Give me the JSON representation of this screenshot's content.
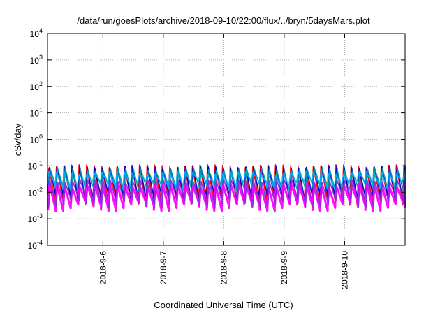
{
  "chart_data": {
    "type": "line",
    "title": "/data/run/goesPlots/archive/2018-09-10/22:00/flux/../bryn/5daysMars.plot",
    "xlabel": "Coordinated Universal Time (UTC)",
    "ylabel": "cSv/day",
    "yscale": "log",
    "ylim": [
      0.0001,
      10000
    ],
    "xlim": [
      "2018-09-05T02:00",
      "2018-09-11T00:00"
    ],
    "grid": true,
    "legend": "none",
    "y_ticks": [
      {
        "base": "10",
        "exp": "-4",
        "value": 0.0001
      },
      {
        "base": "10",
        "exp": "-3",
        "value": 0.001
      },
      {
        "base": "10",
        "exp": "-2",
        "value": 0.01
      },
      {
        "base": "10",
        "exp": "-1",
        "value": 0.1
      },
      {
        "base": "10",
        "exp": "0",
        "value": 1
      },
      {
        "base": "10",
        "exp": "1",
        "value": 10
      },
      {
        "base": "10",
        "exp": "2",
        "value": 100
      },
      {
        "base": "10",
        "exp": "3",
        "value": 1000
      },
      {
        "base": "10",
        "exp": "4",
        "value": 10000
      }
    ],
    "x_ticks": [
      {
        "label": "2018-9-6",
        "value": "2018-09-06T00:00"
      },
      {
        "label": "2018-9-7",
        "value": "2018-09-07T00:00"
      },
      {
        "label": "2018-9-8",
        "value": "2018-09-08T00:00"
      },
      {
        "label": "2018-9-9",
        "value": "2018-09-09T00:00"
      },
      {
        "label": "2018-9-10",
        "value": "2018-09-10T00:00"
      }
    ],
    "series": [
      {
        "color": "#ff0000",
        "upper": 0.11,
        "lower": 0.005
      },
      {
        "color": "#0000cc",
        "upper": 0.1,
        "lower": 0.006
      },
      {
        "color": "#00a0a0",
        "upper": 0.08,
        "lower": 0.012
      },
      {
        "color": "#00b0ff",
        "upper": 0.06,
        "lower": 0.02
      },
      {
        "color": "#ff00ff",
        "upper": 0.02,
        "lower": 0.003
      },
      {
        "color": "#8a2be2",
        "upper": 0.03,
        "lower": 0.004
      }
    ],
    "cycle_period_hours": 3,
    "colors": {
      "axis": "#000000",
      "grid": "#a0a0a0"
    }
  }
}
